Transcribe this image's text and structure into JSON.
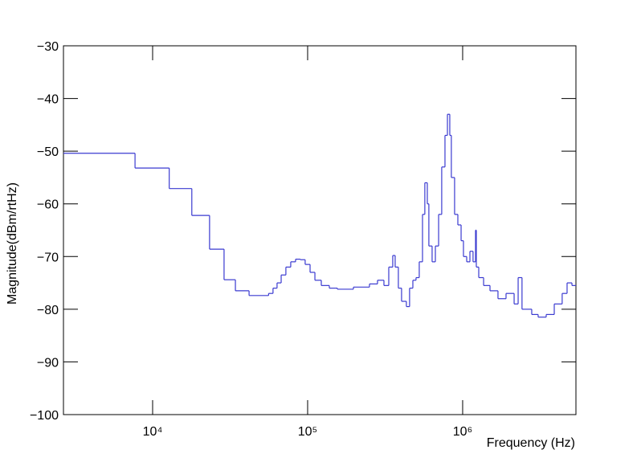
{
  "chart_data": {
    "type": "step",
    "x_label": "Frequency (Hz)",
    "y_label": "Magnitude(dBm/rtHz)",
    "xlog": true,
    "color": "#3a3ad0",
    "xlim": [
      2660,
      5380000
    ],
    "ylim": [
      -100,
      -30
    ],
    "xticks": [
      {
        "value": 10000,
        "label": "10⁴"
      },
      {
        "value": 100000,
        "label": "10⁵"
      },
      {
        "value": 1000000,
        "label": "10⁶"
      }
    ],
    "yticks": [
      {
        "value": -30,
        "label": "−30"
      },
      {
        "value": -40,
        "label": "−40"
      },
      {
        "value": -50,
        "label": "−50"
      },
      {
        "value": -60,
        "label": "−60"
      },
      {
        "value": -70,
        "label": "−70"
      },
      {
        "value": -80,
        "label": "−80"
      },
      {
        "value": -90,
        "label": "−90"
      },
      {
        "value": -100,
        "label": "−100"
      }
    ],
    "x": [
      2660,
      7700,
      12800,
      17900,
      23300,
      28900,
      34200,
      41900,
      56000,
      59800,
      63500,
      67500,
      72400,
      77800,
      83600,
      89800,
      96400,
      103700,
      111400,
      122500,
      138000,
      155500,
      197400,
      250600,
      282300,
      310600,
      333700,
      354000,
      367000,
      384800,
      403600,
      433500,
      454600,
      477300,
      500300,
      524800,
      550800,
      570200,
      591600,
      605300,
      635300,
      666800,
      699800,
      732800,
      769100,
      797700,
      826000,
      845300,
      887200,
      931100,
      977200,
      1012000,
      1062000,
      1114000,
      1167000,
      1211000,
      1225000,
      1270000,
      1365000,
      1501000,
      1690000,
      1905000,
      2148000,
      2280000,
      2415000,
      2535000,
      2790000,
      3069000,
      3459000,
      3899000,
      4385000,
      4717000,
      5070000
    ],
    "values": [
      -50.4,
      -53.2,
      -57.1,
      -62.2,
      -68.6,
      -74.4,
      -76.5,
      -77.4,
      -77.0,
      -76.0,
      -75.0,
      -73.5,
      -72.0,
      -71.0,
      -70.5,
      -70.6,
      -71.5,
      -73.0,
      -74.5,
      -75.5,
      -76.0,
      -76.2,
      -75.8,
      -75.2,
      -74.5,
      -75.5,
      -72.0,
      -69.8,
      -72.0,
      -76.0,
      -78.5,
      -79.5,
      -76.0,
      -74.5,
      -74.0,
      -71.0,
      -62.0,
      -56.0,
      -60.0,
      -68.0,
      -71.0,
      -68.0,
      -62.0,
      -53.0,
      -47.0,
      -43.0,
      -47.0,
      -55.0,
      -62.0,
      -64.0,
      -67.0,
      -70.0,
      -71.0,
      -69.0,
      -71.0,
      -65.0,
      -72.0,
      -74.0,
      -75.5,
      -76.5,
      -78.0,
      -77.0,
      -79.0,
      -74.0,
      -80.0,
      -80.0,
      -81.0,
      -81.5,
      -81.0,
      -79.0,
      -77.0,
      -75.0,
      -75.5
    ]
  }
}
